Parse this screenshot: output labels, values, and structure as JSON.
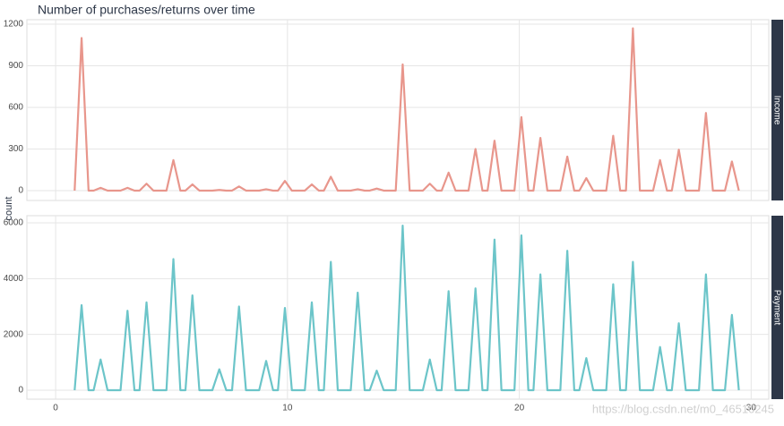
{
  "chart_data": {
    "type": "line",
    "title": "Number of purchases/returns over time",
    "y_label": "count",
    "watermark": "https://blog.csdn.net/m0_46510245",
    "x": [
      0.82,
      1.12,
      1.42,
      1.64,
      1.94,
      2.24,
      2.8,
      3.1,
      3.4,
      3.62,
      3.92,
      4.22,
      4.78,
      5.08,
      5.38,
      5.6,
      5.9,
      6.2,
      6.76,
      7.06,
      7.36,
      7.61,
      7.91,
      8.21,
      8.78,
      9.08,
      9.38,
      9.59,
      9.89,
      10.19,
      10.75,
      11.05,
      11.35,
      11.57,
      11.87,
      12.17,
      12.73,
      13.03,
      13.33,
      13.55,
      13.85,
      14.15,
      14.67,
      14.97,
      15.27,
      15.84,
      16.14,
      16.44,
      16.65,
      16.95,
      17.25,
      17.81,
      18.11,
      18.41,
      18.63,
      18.93,
      19.23,
      19.79,
      20.09,
      20.39,
      20.61,
      20.91,
      21.21,
      21.77,
      22.07,
      22.37,
      22.59,
      22.89,
      23.19,
      23.75,
      24.05,
      24.35,
      24.6,
      24.9,
      25.2,
      25.77,
      26.07,
      26.37,
      26.58,
      26.88,
      27.18,
      27.75,
      28.05,
      28.35,
      28.87,
      29.17,
      29.47
    ],
    "xlim": [
      -1.24,
      30.76
    ],
    "xticks": [
      0,
      10,
      20,
      30
    ],
    "grid": true,
    "series": [
      {
        "name": "Income",
        "color": "#e8968c",
        "ylim": [
          -71,
          1232
        ],
        "yticks": [
          0,
          300,
          600,
          900,
          1200
        ],
        "values": [
          0,
          1100,
          0,
          0,
          20,
          0,
          0,
          20,
          0,
          0,
          50,
          0,
          0,
          220,
          0,
          0,
          45,
          0,
          0,
          5,
          0,
          0,
          30,
          0,
          0,
          10,
          0,
          0,
          70,
          0,
          0,
          45,
          0,
          0,
          100,
          0,
          0,
          10,
          0,
          0,
          15,
          0,
          0,
          910,
          0,
          0,
          50,
          0,
          0,
          130,
          0,
          0,
          300,
          0,
          0,
          360,
          0,
          0,
          530,
          0,
          0,
          380,
          0,
          0,
          245,
          0,
          0,
          90,
          0,
          0,
          395,
          0,
          0,
          1170,
          0,
          0,
          220,
          0,
          0,
          295,
          0,
          0,
          560,
          0,
          0,
          210,
          0
        ]
      },
      {
        "name": "Payment",
        "color": "#6cc5c9",
        "ylim": [
          -321,
          6257
        ],
        "yticks": [
          0,
          2000,
          4000,
          6000
        ],
        "values": [
          0,
          3050,
          0,
          0,
          1100,
          0,
          0,
          2850,
          0,
          0,
          3150,
          0,
          0,
          4700,
          0,
          0,
          3400,
          0,
          0,
          750,
          0,
          0,
          3000,
          0,
          0,
          1050,
          0,
          0,
          2950,
          0,
          0,
          3150,
          0,
          0,
          4600,
          0,
          0,
          3500,
          0,
          0,
          700,
          0,
          0,
          5900,
          0,
          0,
          1100,
          0,
          0,
          3550,
          0,
          0,
          3650,
          0,
          0,
          5400,
          0,
          0,
          5550,
          0,
          0,
          4150,
          0,
          0,
          5000,
          0,
          0,
          1150,
          0,
          0,
          3800,
          0,
          0,
          4600,
          0,
          0,
          1550,
          0,
          0,
          2400,
          0,
          0,
          4150,
          0,
          0,
          2700,
          0
        ]
      }
    ]
  }
}
